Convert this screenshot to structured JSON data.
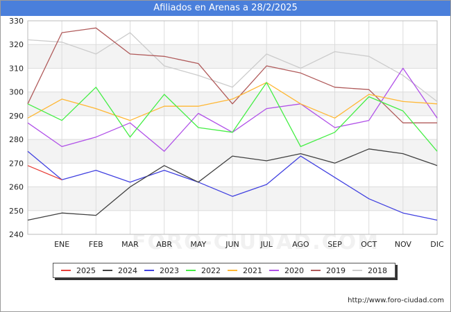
{
  "title": "Afiliados en Arenas a 28/2/2025",
  "url": "http://www.foro-ciudad.com",
  "watermark": "FORO-CIUDAD.COM",
  "chart_data": {
    "type": "line",
    "title": "Afiliados en Arenas a 28/2/2025",
    "xlabel": "",
    "ylabel": "",
    "categories": [
      "",
      "ENE",
      "FEB",
      "MAR",
      "ABR",
      "MAY",
      "JUN",
      "JUL",
      "AGO",
      "SEP",
      "OCT",
      "NOV",
      "DIC"
    ],
    "ylim": [
      240,
      330
    ],
    "yticks": [
      240,
      250,
      260,
      270,
      280,
      290,
      300,
      310,
      320,
      330
    ],
    "grid": true,
    "legend_position": "bottom",
    "series": [
      {
        "name": "2025",
        "color": "#e8403a",
        "values": [
          269,
          263,
          null,
          null,
          null,
          null,
          null,
          null,
          null,
          null,
          null,
          null,
          null
        ]
      },
      {
        "name": "2024",
        "color": "#404040",
        "values": [
          246,
          249,
          248,
          260,
          269,
          262,
          273,
          271,
          274,
          270,
          276,
          274,
          269
        ]
      },
      {
        "name": "2023",
        "color": "#4040e0",
        "values": [
          275,
          263,
          267,
          262,
          267,
          262,
          256,
          261,
          273,
          264,
          255,
          249,
          246
        ]
      },
      {
        "name": "2022",
        "color": "#44ee44",
        "values": [
          295,
          288,
          302,
          281,
          299,
          285,
          283,
          304,
          277,
          283,
          298,
          292,
          275
        ]
      },
      {
        "name": "2021",
        "color": "#ffb733",
        "values": [
          289,
          297,
          293,
          288,
          294,
          294,
          297,
          304,
          295,
          289,
          299,
          296,
          295
        ]
      },
      {
        "name": "2020",
        "color": "#b050e8",
        "values": [
          287,
          277,
          281,
          287,
          275,
          291,
          283,
          293,
          295,
          285,
          288,
          310,
          289
        ]
      },
      {
        "name": "2019",
        "color": "#b05a5a",
        "values": [
          295,
          325,
          327,
          316,
          315,
          312,
          295,
          311,
          308,
          302,
          301,
          287,
          287
        ]
      },
      {
        "name": "2018",
        "color": "#cccccc",
        "values": [
          322,
          321,
          316,
          325,
          311,
          307,
          302,
          316,
          310,
          317,
          315,
          307,
          296
        ]
      }
    ]
  }
}
